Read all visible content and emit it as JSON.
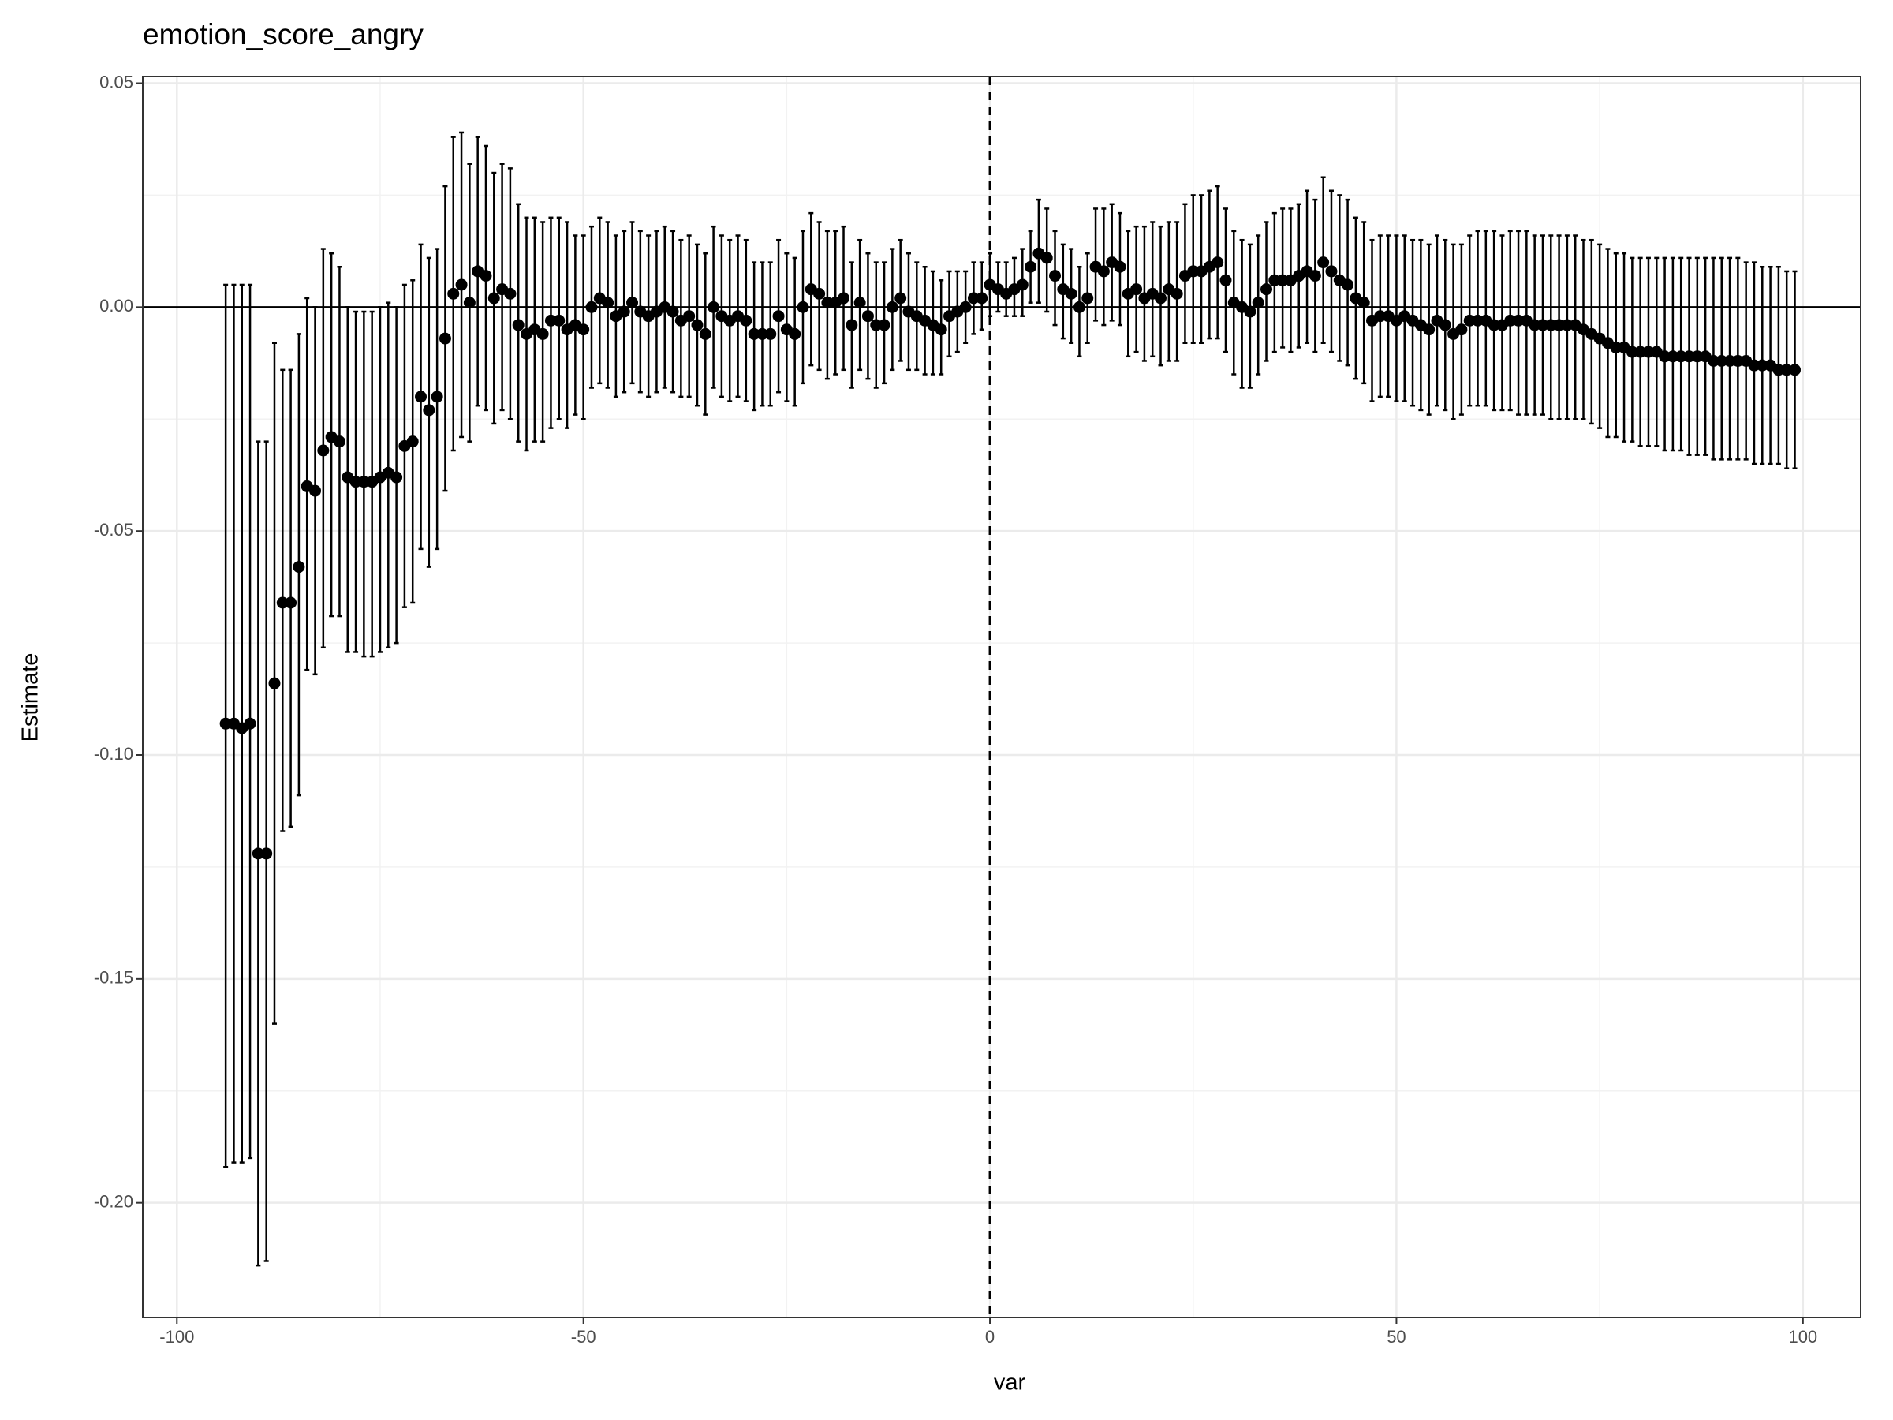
{
  "chart_data": {
    "type": "errorbar",
    "title": "emotion_score_angry",
    "x_label": "var",
    "y_label": "Estimate",
    "color": "#000000",
    "grid": true,
    "hline": 0,
    "vline": 0,
    "xlim": [
      -104.2,
      107.1
    ],
    "ylim": [
      -0.2256,
      0.0515
    ],
    "xticks": [
      -100,
      -50,
      0,
      50,
      100
    ],
    "yticks": [
      0.05,
      {
        "value": 0,
        "label": "0.00"
      },
      {
        "value": -0.05,
        "label": "-0.05"
      },
      {
        "value": -0.1,
        "label": "-0.10"
      },
      {
        "value": -0.15,
        "label": "-0.15"
      },
      {
        "value": -0.2,
        "label": "-0.20"
      }
    ],
    "x": [
      -94,
      -93,
      -92,
      -91,
      -90,
      -89,
      -88,
      -87,
      -86,
      -85,
      -84,
      -83,
      -82,
      -81,
      -80,
      -79,
      -78,
      -77,
      -76,
      -75,
      -74,
      -73,
      -72,
      -71,
      -70,
      -69,
      -68,
      -67,
      -66,
      -65,
      -64,
      -63,
      -62,
      -61,
      -60,
      -59,
      -58,
      -57,
      -56,
      -55,
      -54,
      -53,
      -52,
      -51,
      -50,
      -49,
      -48,
      -47,
      -46,
      -45,
      -44,
      -43,
      -42,
      -41,
      -40,
      -39,
      -38,
      -37,
      -36,
      -35,
      -34,
      -33,
      -32,
      -31,
      -30,
      -29,
      -28,
      -27,
      -26,
      -25,
      -24,
      -23,
      -22,
      -21,
      -20,
      -19,
      -18,
      -17,
      -16,
      -15,
      -14,
      -13,
      -12,
      -11,
      -10,
      -9,
      -8,
      -7,
      -6,
      -5,
      -4,
      -3,
      -2,
      -1,
      0,
      1,
      2,
      3,
      4,
      5,
      6,
      7,
      8,
      9,
      10,
      11,
      12,
      13,
      14,
      15,
      16,
      17,
      18,
      19,
      20,
      21,
      22,
      23,
      24,
      25,
      26,
      27,
      28,
      29,
      30,
      31,
      32,
      33,
      34,
      35,
      36,
      37,
      38,
      39,
      40,
      41,
      42,
      43,
      44,
      45,
      46,
      47,
      48,
      49,
      50,
      51,
      52,
      53,
      54,
      55,
      56,
      57,
      58,
      59,
      60,
      61,
      62,
      63,
      64,
      65,
      66,
      67,
      68,
      69,
      70,
      71,
      72,
      73,
      74,
      75,
      76,
      77,
      78,
      79,
      80,
      81,
      82,
      83,
      84,
      85,
      86,
      87,
      88,
      89,
      90,
      91,
      92,
      93,
      94,
      95,
      96,
      97,
      98,
      99
    ],
    "values": [
      -0.093,
      -0.093,
      -0.094,
      -0.093,
      -0.122,
      -0.122,
      -0.084,
      -0.066,
      -0.066,
      -0.058,
      -0.04,
      -0.041,
      -0.032,
      -0.029,
      -0.03,
      -0.038,
      -0.039,
      -0.039,
      -0.039,
      -0.038,
      -0.037,
      -0.038,
      -0.031,
      -0.03,
      -0.02,
      -0.023,
      -0.02,
      -0.007,
      0.003,
      0.005,
      0.001,
      0.008,
      0.007,
      0.002,
      0.004,
      0.003,
      -0.004,
      -0.006,
      -0.005,
      -0.006,
      -0.003,
      -0.003,
      -0.005,
      -0.004,
      -0.005,
      0.0,
      0.002,
      0.001,
      -0.002,
      -0.001,
      0.001,
      -0.001,
      -0.002,
      -0.001,
      0.0,
      -0.001,
      -0.003,
      -0.002,
      -0.004,
      -0.006,
      0.0,
      -0.002,
      -0.003,
      -0.002,
      -0.003,
      -0.006,
      -0.006,
      -0.006,
      -0.002,
      -0.005,
      -0.006,
      0.0,
      0.004,
      0.003,
      0.001,
      0.001,
      0.002,
      -0.004,
      0.001,
      -0.002,
      -0.004,
      -0.004,
      0.0,
      0.002,
      -0.001,
      -0.002,
      -0.003,
      -0.004,
      -0.005,
      -0.002,
      -0.001,
      0.0,
      0.002,
      0.002,
      0.005,
      0.004,
      0.003,
      0.004,
      0.005,
      0.009,
      0.012,
      0.011,
      0.007,
      0.004,
      0.003,
      0.0,
      0.002,
      0.009,
      0.008,
      0.01,
      0.009,
      0.003,
      0.004,
      0.002,
      0.003,
      0.002,
      0.004,
      0.003,
      0.007,
      0.008,
      0.008,
      0.009,
      0.01,
      0.006,
      0.001,
      0.0,
      -0.001,
      0.001,
      0.004,
      0.006,
      0.006,
      0.006,
      0.007,
      0.008,
      0.007,
      0.01,
      0.008,
      0.006,
      0.005,
      0.002,
      0.001,
      -0.003,
      -0.002,
      -0.002,
      -0.003,
      -0.002,
      -0.003,
      -0.004,
      -0.005,
      -0.003,
      -0.004,
      -0.006,
      -0.005,
      -0.003,
      -0.003,
      -0.003,
      -0.004,
      -0.004,
      -0.003,
      -0.003,
      -0.003,
      -0.004,
      -0.004,
      -0.004,
      -0.004,
      -0.004,
      -0.004,
      -0.005,
      -0.006,
      -0.007,
      -0.008,
      -0.009,
      -0.009,
      -0.01,
      -0.01,
      -0.01,
      -0.01,
      -0.011,
      -0.011,
      -0.011,
      -0.011,
      -0.011,
      -0.011,
      -0.012,
      -0.012,
      -0.012,
      -0.012,
      -0.012,
      -0.013,
      -0.013,
      -0.013,
      -0.014,
      -0.014,
      -0.014
    ],
    "upper": [
      0.005,
      0.005,
      0.005,
      0.005,
      -0.03,
      -0.03,
      -0.008,
      -0.014,
      -0.014,
      -0.006,
      0.002,
      0.0,
      0.013,
      0.012,
      0.009,
      0.0,
      -0.001,
      -0.001,
      -0.001,
      0.0,
      0.001,
      0.0,
      0.005,
      0.006,
      0.014,
      0.011,
      0.013,
      0.027,
      0.038,
      0.039,
      0.032,
      0.038,
      0.036,
      0.03,
      0.032,
      0.031,
      0.023,
      0.02,
      0.02,
      0.019,
      0.02,
      0.02,
      0.019,
      0.016,
      0.016,
      0.018,
      0.02,
      0.019,
      0.016,
      0.017,
      0.019,
      0.017,
      0.016,
      0.017,
      0.018,
      0.017,
      0.015,
      0.016,
      0.014,
      0.012,
      0.018,
      0.016,
      0.015,
      0.016,
      0.015,
      0.01,
      0.01,
      0.01,
      0.015,
      0.012,
      0.011,
      0.017,
      0.021,
      0.019,
      0.017,
      0.017,
      0.018,
      0.01,
      0.015,
      0.012,
      0.01,
      0.01,
      0.013,
      0.015,
      0.012,
      0.01,
      0.009,
      0.008,
      0.006,
      0.008,
      0.008,
      0.008,
      0.01,
      0.01,
      0.012,
      0.01,
      0.01,
      0.011,
      0.013,
      0.017,
      0.024,
      0.022,
      0.017,
      0.014,
      0.013,
      0.009,
      0.012,
      0.022,
      0.022,
      0.023,
      0.021,
      0.017,
      0.018,
      0.018,
      0.019,
      0.018,
      0.019,
      0.019,
      0.023,
      0.025,
      0.025,
      0.026,
      0.027,
      0.022,
      0.017,
      0.015,
      0.014,
      0.016,
      0.019,
      0.021,
      0.022,
      0.022,
      0.023,
      0.026,
      0.024,
      0.029,
      0.026,
      0.025,
      0.024,
      0.02,
      0.019,
      0.015,
      0.016,
      0.016,
      0.016,
      0.016,
      0.015,
      0.015,
      0.014,
      0.016,
      0.015,
      0.014,
      0.014,
      0.016,
      0.017,
      0.017,
      0.017,
      0.016,
      0.017,
      0.017,
      0.017,
      0.016,
      0.016,
      0.016,
      0.016,
      0.016,
      0.016,
      0.015,
      0.015,
      0.014,
      0.013,
      0.012,
      0.012,
      0.011,
      0.011,
      0.011,
      0.011,
      0.011,
      0.011,
      0.011,
      0.011,
      0.011,
      0.011,
      0.011,
      0.011,
      0.011,
      0.011,
      0.01,
      0.01,
      0.009,
      0.009,
      0.009,
      0.008,
      0.008
    ],
    "lower": [
      -0.192,
      -0.191,
      -0.191,
      -0.19,
      -0.214,
      -0.213,
      -0.16,
      -0.117,
      -0.116,
      -0.109,
      -0.081,
      -0.082,
      -0.076,
      -0.069,
      -0.069,
      -0.077,
      -0.077,
      -0.078,
      -0.078,
      -0.077,
      -0.076,
      -0.075,
      -0.067,
      -0.066,
      -0.054,
      -0.058,
      -0.054,
      -0.041,
      -0.032,
      -0.029,
      -0.03,
      -0.022,
      -0.023,
      -0.026,
      -0.023,
      -0.025,
      -0.03,
      -0.032,
      -0.03,
      -0.03,
      -0.027,
      -0.025,
      -0.027,
      -0.024,
      -0.025,
      -0.018,
      -0.017,
      -0.018,
      -0.02,
      -0.019,
      -0.017,
      -0.019,
      -0.02,
      -0.019,
      -0.018,
      -0.019,
      -0.02,
      -0.02,
      -0.022,
      -0.024,
      -0.018,
      -0.02,
      -0.021,
      -0.02,
      -0.021,
      -0.023,
      -0.022,
      -0.022,
      -0.019,
      -0.021,
      -0.022,
      -0.017,
      -0.013,
      -0.014,
      -0.016,
      -0.015,
      -0.014,
      -0.018,
      -0.014,
      -0.016,
      -0.018,
      -0.017,
      -0.014,
      -0.012,
      -0.014,
      -0.014,
      -0.015,
      -0.015,
      -0.015,
      -0.011,
      -0.01,
      -0.008,
      -0.006,
      -0.005,
      -0.002,
      -0.001,
      -0.002,
      -0.002,
      -0.002,
      0.001,
      0.001,
      -0.001,
      -0.004,
      -0.007,
      -0.008,
      -0.011,
      -0.008,
      -0.003,
      -0.004,
      -0.003,
      -0.004,
      -0.011,
      -0.01,
      -0.012,
      -0.011,
      -0.013,
      -0.012,
      -0.012,
      -0.008,
      -0.008,
      -0.008,
      -0.007,
      -0.007,
      -0.01,
      -0.015,
      -0.018,
      -0.018,
      -0.015,
      -0.012,
      -0.01,
      -0.009,
      -0.01,
      -0.009,
      -0.008,
      -0.01,
      -0.008,
      -0.01,
      -0.012,
      -0.013,
      -0.016,
      -0.017,
      -0.021,
      -0.02,
      -0.02,
      -0.021,
      -0.021,
      -0.022,
      -0.023,
      -0.024,
      -0.022,
      -0.023,
      -0.025,
      -0.024,
      -0.022,
      -0.022,
      -0.022,
      -0.023,
      -0.023,
      -0.023,
      -0.024,
      -0.024,
      -0.024,
      -0.024,
      -0.025,
      -0.025,
      -0.025,
      -0.025,
      -0.025,
      -0.026,
      -0.027,
      -0.029,
      -0.029,
      -0.03,
      -0.03,
      -0.031,
      -0.031,
      -0.031,
      -0.032,
      -0.032,
      -0.032,
      -0.033,
      -0.033,
      -0.033,
      -0.034,
      -0.034,
      -0.034,
      -0.034,
      -0.034,
      -0.035,
      -0.035,
      -0.035,
      -0.035,
      -0.036,
      -0.036
    ]
  }
}
